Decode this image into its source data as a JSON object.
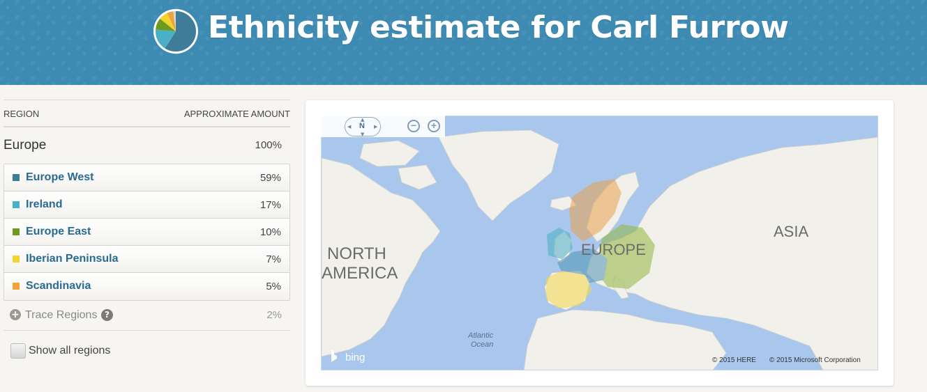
{
  "header": {
    "title": "Ethnicity estimate for Carl Furrow",
    "icon": "pie-chart-icon"
  },
  "table": {
    "col_region": "REGION",
    "col_amount": "APPROXIMATE AMOUNT",
    "group_name": "Europe",
    "group_pct": "100%",
    "rows": [
      {
        "label": "Europe West",
        "pct": "59%",
        "color": "#3e7c97"
      },
      {
        "label": "Ireland",
        "pct": "17%",
        "color": "#4ab0c6"
      },
      {
        "label": "Europe East",
        "pct": "10%",
        "color": "#6d9a1f"
      },
      {
        "label": "Iberian Peninsula",
        "pct": "7%",
        "color": "#f0d430"
      },
      {
        "label": "Scandinavia",
        "pct": "5%",
        "color": "#f0a33a"
      }
    ],
    "trace_label": "Trace Regions",
    "trace_pct": "2%",
    "show_all_label": "Show all regions"
  },
  "map": {
    "compass_label": "N",
    "labels": {
      "north_america_1": "NORTH",
      "north_america_2": "AMERICA",
      "europe": "EUROPE",
      "asia": "ASIA",
      "ocean_1": "Atlantic",
      "ocean_2": "Ocean"
    },
    "brand": "bing",
    "copyright_here": "© 2015 HERE",
    "copyright_ms": "© 2015 Microsoft Corporation",
    "colors": {
      "water": "#a9c7ec",
      "land": "#f2f0ea"
    }
  }
}
